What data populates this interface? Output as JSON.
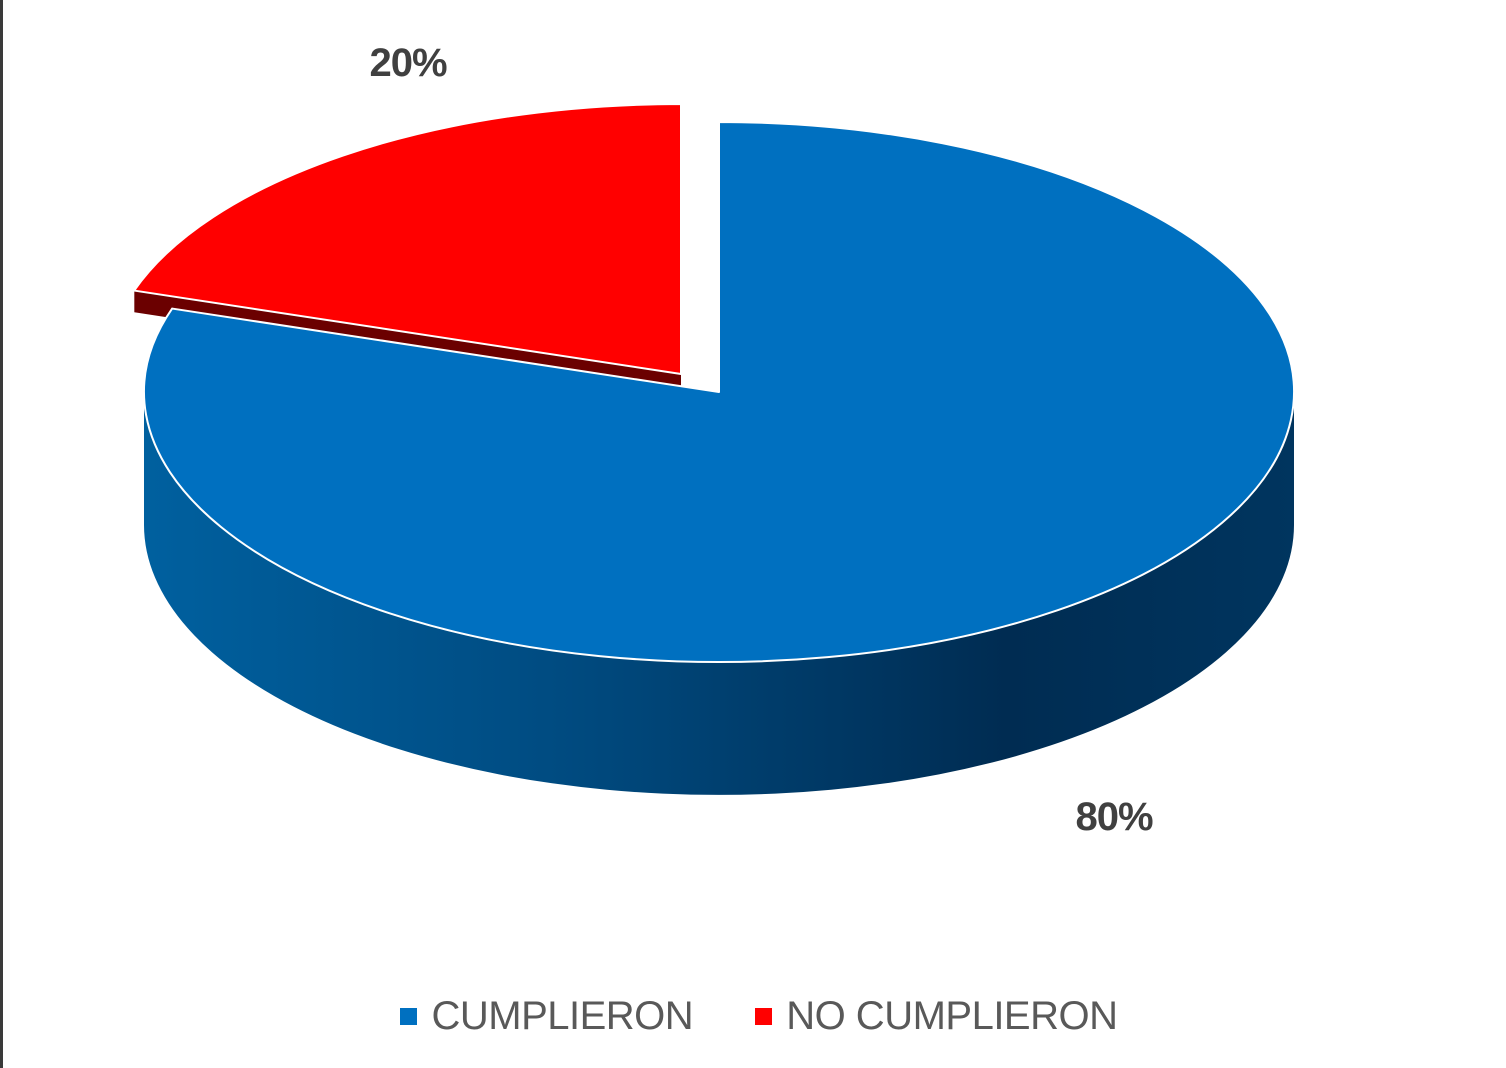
{
  "chart_data": {
    "type": "pie",
    "title": "",
    "three_d": true,
    "legend_position": "bottom",
    "categories": [
      "CUMPLIERON",
      "NO CUMPLIERON"
    ],
    "values": [
      80,
      20
    ],
    "data_labels": [
      "80%",
      "20%"
    ],
    "colors": [
      "#0070C0",
      "#FF0000"
    ],
    "side_colors": [
      "#003A6B",
      "#6B0000"
    ],
    "exploded": [
      "NO CUMPLIERON"
    ]
  }
}
